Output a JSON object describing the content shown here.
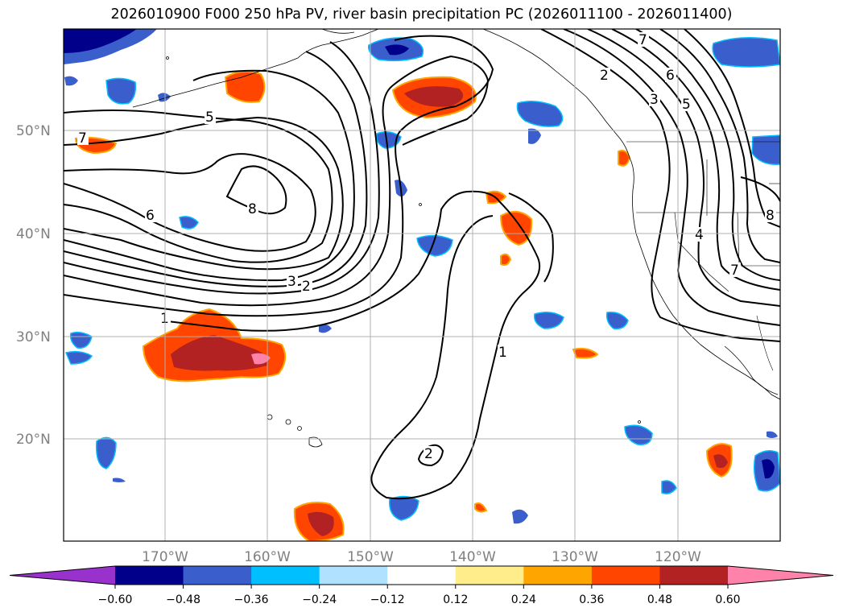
{
  "title": "2026010900 F000 250 hPa PV, river basin precipitation PC (2026011100 - 2026011400)",
  "lat_labels": [
    "50°N",
    "40°N",
    "30°N",
    "20°N"
  ],
  "lon_labels": [
    "170°W",
    "160°W",
    "150°W",
    "140°W",
    "130°W",
    "120°W"
  ],
  "colorbar": {
    "ticks": [
      "−0.60",
      "−0.48",
      "−0.36",
      "−0.24",
      "−0.12",
      "0.12",
      "0.24",
      "0.36",
      "0.48",
      "0.60"
    ],
    "colors": [
      "#9932cc",
      "#00008b",
      "#3a5fcd",
      "#00bfff",
      "#b0e2ff",
      "#ffffff",
      "#ffec8b",
      "#ffa500",
      "#ff4500",
      "#b22222",
      "#ff82ab"
    ]
  },
  "contour_labels": [
    "5",
    "7",
    "8",
    "6",
    "3",
    "2",
    "1",
    "1",
    "2",
    "2",
    "7",
    "6",
    "5",
    "3",
    "4",
    "7",
    "8"
  ]
}
